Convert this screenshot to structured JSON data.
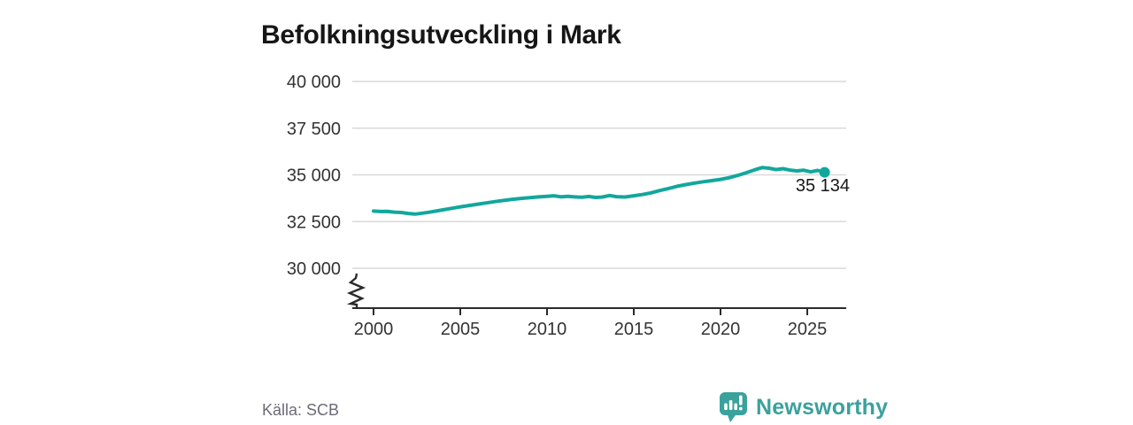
{
  "title": "Befolkningsutveckling i Mark",
  "source": {
    "label": "Källa: SCB"
  },
  "branding": {
    "name": "Newsworthy",
    "color": "#3ba19d",
    "icon": "speech-bubble-bar-chart"
  },
  "colors": {
    "line": "#12a79c",
    "grid": "#d9d9d9",
    "axis": "#2b2b2b",
    "tick_text": "#333333",
    "end_label_text": "#161616"
  },
  "chart_data": {
    "type": "line",
    "title": "Befolkningsutveckling i Mark",
    "xlabel": "",
    "ylabel": "",
    "grid": "horizontal",
    "axis_break": true,
    "x_range": [
      1999,
      2027.2
    ],
    "y_range_shown": [
      30000,
      40000
    ],
    "y_ticks": [
      {
        "value": 40000,
        "label": "40 000"
      },
      {
        "value": 37500,
        "label": "37 500"
      },
      {
        "value": 35000,
        "label": "35 000"
      },
      {
        "value": 32500,
        "label": "32 500"
      },
      {
        "value": 30000,
        "label": "30 000"
      }
    ],
    "x_ticks": [
      {
        "value": 2000,
        "label": "2000"
      },
      {
        "value": 2005,
        "label": "2005"
      },
      {
        "value": 2010,
        "label": "2010"
      },
      {
        "value": 2015,
        "label": "2015"
      },
      {
        "value": 2020,
        "label": "2020"
      },
      {
        "value": 2025,
        "label": "2025"
      }
    ],
    "end_point": {
      "x": 2026,
      "value": 35134,
      "label": "35 134"
    },
    "series": [
      {
        "id": "population",
        "points": [
          [
            2000.0,
            33060
          ],
          [
            2000.4,
            33040
          ],
          [
            2000.8,
            33045
          ],
          [
            2001.2,
            33005
          ],
          [
            2001.6,
            32985
          ],
          [
            2002.0,
            32935
          ],
          [
            2002.4,
            32900
          ],
          [
            2002.8,
            32950
          ],
          [
            2003.2,
            33000
          ],
          [
            2003.6,
            33060
          ],
          [
            2004.0,
            33130
          ],
          [
            2004.5,
            33210
          ],
          [
            2005.0,
            33290
          ],
          [
            2005.5,
            33360
          ],
          [
            2006.0,
            33430
          ],
          [
            2006.5,
            33500
          ],
          [
            2007.0,
            33570
          ],
          [
            2007.5,
            33630
          ],
          [
            2008.0,
            33690
          ],
          [
            2008.5,
            33740
          ],
          [
            2009.0,
            33780
          ],
          [
            2009.5,
            33820
          ],
          [
            2010.0,
            33855
          ],
          [
            2010.4,
            33880
          ],
          [
            2010.8,
            33825
          ],
          [
            2011.2,
            33855
          ],
          [
            2011.6,
            33820
          ],
          [
            2012.0,
            33800
          ],
          [
            2012.4,
            33845
          ],
          [
            2012.8,
            33790
          ],
          [
            2013.2,
            33815
          ],
          [
            2013.6,
            33895
          ],
          [
            2014.0,
            33835
          ],
          [
            2014.5,
            33815
          ],
          [
            2015.0,
            33880
          ],
          [
            2015.5,
            33950
          ],
          [
            2016.0,
            34040
          ],
          [
            2016.5,
            34160
          ],
          [
            2017.0,
            34270
          ],
          [
            2017.5,
            34390
          ],
          [
            2018.0,
            34480
          ],
          [
            2018.5,
            34560
          ],
          [
            2019.0,
            34630
          ],
          [
            2019.5,
            34690
          ],
          [
            2020.0,
            34760
          ],
          [
            2020.5,
            34850
          ],
          [
            2021.0,
            34970
          ],
          [
            2021.5,
            35120
          ],
          [
            2022.0,
            35280
          ],
          [
            2022.4,
            35390
          ],
          [
            2022.8,
            35355
          ],
          [
            2023.2,
            35285
          ],
          [
            2023.6,
            35330
          ],
          [
            2024.0,
            35255
          ],
          [
            2024.4,
            35215
          ],
          [
            2024.8,
            35245
          ],
          [
            2025.2,
            35160
          ],
          [
            2025.6,
            35235
          ],
          [
            2026.0,
            35134
          ]
        ]
      }
    ]
  }
}
